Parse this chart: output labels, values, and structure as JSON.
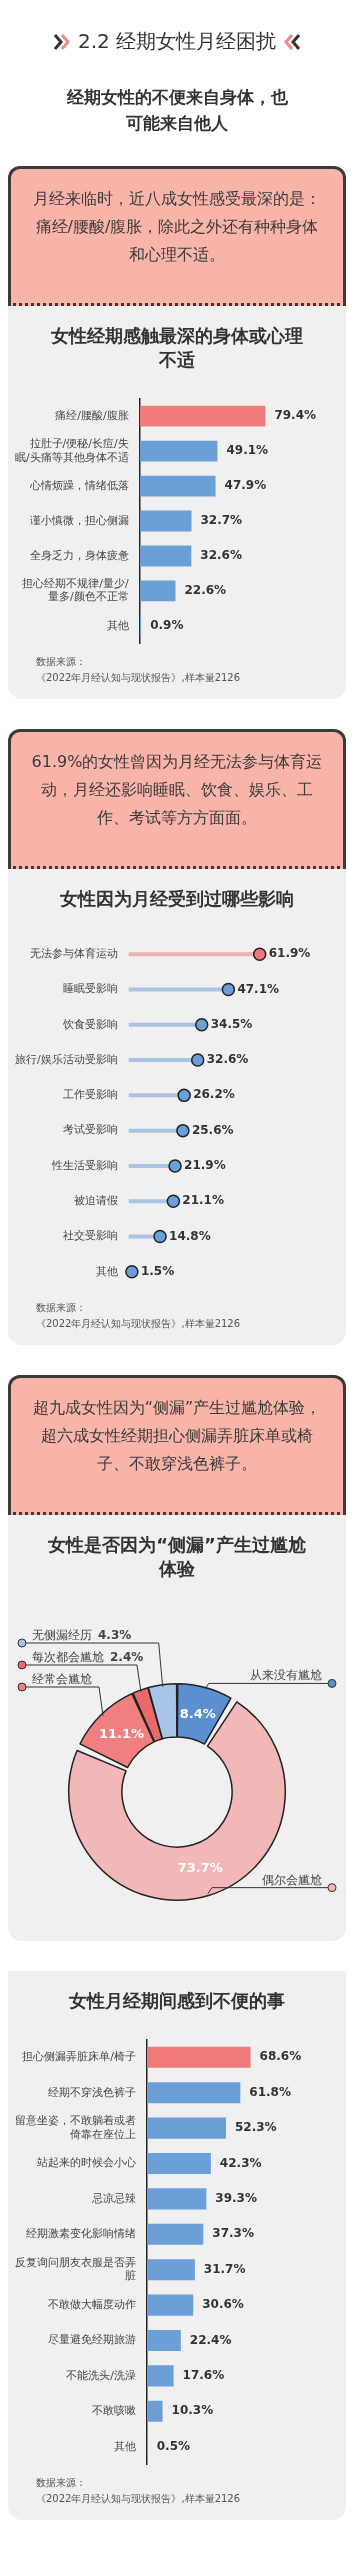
{
  "chart_data": [
    {
      "type": "other",
      "title": "2.2 经期女性月经困扰",
      "subtitle": "经期女性的不便来自身体，也可能来自他人",
      "annotations": [
        "月经来临时，近八成女性感受最深的是：痛经/腰酸/腹胀，除此之外还有种种身体和心理不适。"
      ]
    },
    {
      "type": "bar",
      "orientation": "horizontal",
      "title": "女性经期感触最深的身体或心理不适",
      "categories": [
        "痛经/腰酸/腹胀",
        "拉肚子/便秘/长痘/失眠/头痛等其他身体不适",
        "心情烦躁，情绪低落",
        "谨小慎微，担心侧漏",
        "全身乏力，身体疲惫",
        "担心经期不规律/量少/量多/颜色不正常",
        "其他"
      ],
      "values": [
        79.4,
        49.1,
        47.9,
        32.7,
        32.6,
        22.6,
        0.9
      ],
      "colors": [
        "#f07a7a",
        "#6a9fd8",
        "#6a9fd8",
        "#6a9fd8",
        "#6a9fd8",
        "#6a9fd8",
        "#6a9fd8"
      ],
      "value_labels": [
        "79.4%",
        "49.1%",
        "47.9%",
        "32.7%",
        "32.6%",
        "22.6%",
        "0.9%"
      ],
      "tick_labels": "y",
      "annotations": [
        "数据来源：",
        "《2022年月经认知与现状报告》,样本量2126"
      ]
    },
    {
      "type": "other",
      "annotations": [
        "61.9%的女性曾因为月经无法参与体育运动，月经还影响睡眠、饮食、娱乐、工作、考试等方方面面。"
      ]
    },
    {
      "type": "lollipop",
      "orientation": "horizontal",
      "title": "女性因为月经受到过哪些影响",
      "categories": [
        "无法参与体育运动",
        "睡眠受影响",
        "饮食受影响",
        "旅行/娱乐活动受影响",
        "工作受影响",
        "考试受影响",
        "性生活受影响",
        "被迫请假",
        "社交受影响",
        "其他"
      ],
      "values": [
        61.9,
        47.1,
        34.5,
        32.6,
        26.2,
        25.6,
        21.9,
        21.1,
        14.8,
        1.5
      ],
      "colors": [
        "#f07a7a",
        "#6a9fd8",
        "#6a9fd8",
        "#6a9fd8",
        "#6a9fd8",
        "#6a9fd8",
        "#6a9fd8",
        "#6a9fd8",
        "#6a9fd8",
        "#6a9fd8"
      ],
      "value_labels": [
        "61.9%",
        "47.1%",
        "34.5%",
        "32.6%",
        "26.2%",
        "25.6%",
        "21.9%",
        "21.1%",
        "14.8%",
        "1.5%"
      ],
      "tick_labels": "y",
      "annotations": [
        "数据来源：",
        "《2022年月经认知与现状报告》,样本量2126"
      ]
    },
    {
      "type": "other",
      "annotations": [
        "超九成女性因为“侧漏”产生过尴尬体验，超六成女性经期担心侧漏弄脏床单或椅子、不敢穿浅色裤子。"
      ]
    },
    {
      "type": "donut",
      "title": "女性是否因为“侧漏”产生过尴尬体验",
      "categories": [
        "从来没有尴尬",
        "偶尔会尴尬",
        "经常会尴尬",
        "每次都会尴尬",
        "无侧漏经历"
      ],
      "values": [
        8.4,
        73.7,
        11.1,
        2.4,
        4.3
      ],
      "colors": [
        "#5b8fd0",
        "#f2b8b8",
        "#f08080",
        "#e86a6a",
        "#a8c4e6"
      ],
      "value_labels": [
        "8.4%",
        "73.7%",
        "11.1%",
        "2.4%",
        "4.3%"
      ],
      "legend": "top left"
    },
    {
      "type": "bar",
      "orientation": "horizontal",
      "title": "女性月经期间感到不便的事",
      "categories": [
        "担心侧漏弄脏床单/椅子",
        "经期不穿浅色裤子",
        "留意坐姿，不敢躺着或者倚靠在座位上",
        "站起来的时候会小心",
        "忌凉忌辣",
        "经期激素变化影响情绪",
        "反复询问朋友衣服是否弄脏",
        "不敢做大幅度动作",
        "尽量避免经期旅游",
        "不能洗头/洗澡",
        "不敢咳嗽",
        "其他"
      ],
      "values": [
        68.6,
        61.8,
        52.3,
        42.3,
        39.3,
        37.3,
        31.7,
        30.6,
        22.4,
        17.6,
        10.3,
        0.5
      ],
      "colors": [
        "#f07a7a",
        "#6a9fd8",
        "#6a9fd8",
        "#6a9fd8",
        "#6a9fd8",
        "#6a9fd8",
        "#6a9fd8",
        "#6a9fd8",
        "#6a9fd8",
        "#6a9fd8",
        "#6a9fd8",
        "#6a9fd8"
      ],
      "value_labels": [
        "68.6%",
        "61.8%",
        "52.3%",
        "42.3%",
        "39.3%",
        "37.3%",
        "31.7%",
        "30.6%",
        "22.4%",
        "17.6%",
        "10.3%",
        "0.5%"
      ],
      "tick_labels": "y",
      "annotations": [
        "数据来源：",
        "《2022年月经认知与现状报告》,样本量2126"
      ]
    }
  ]
}
